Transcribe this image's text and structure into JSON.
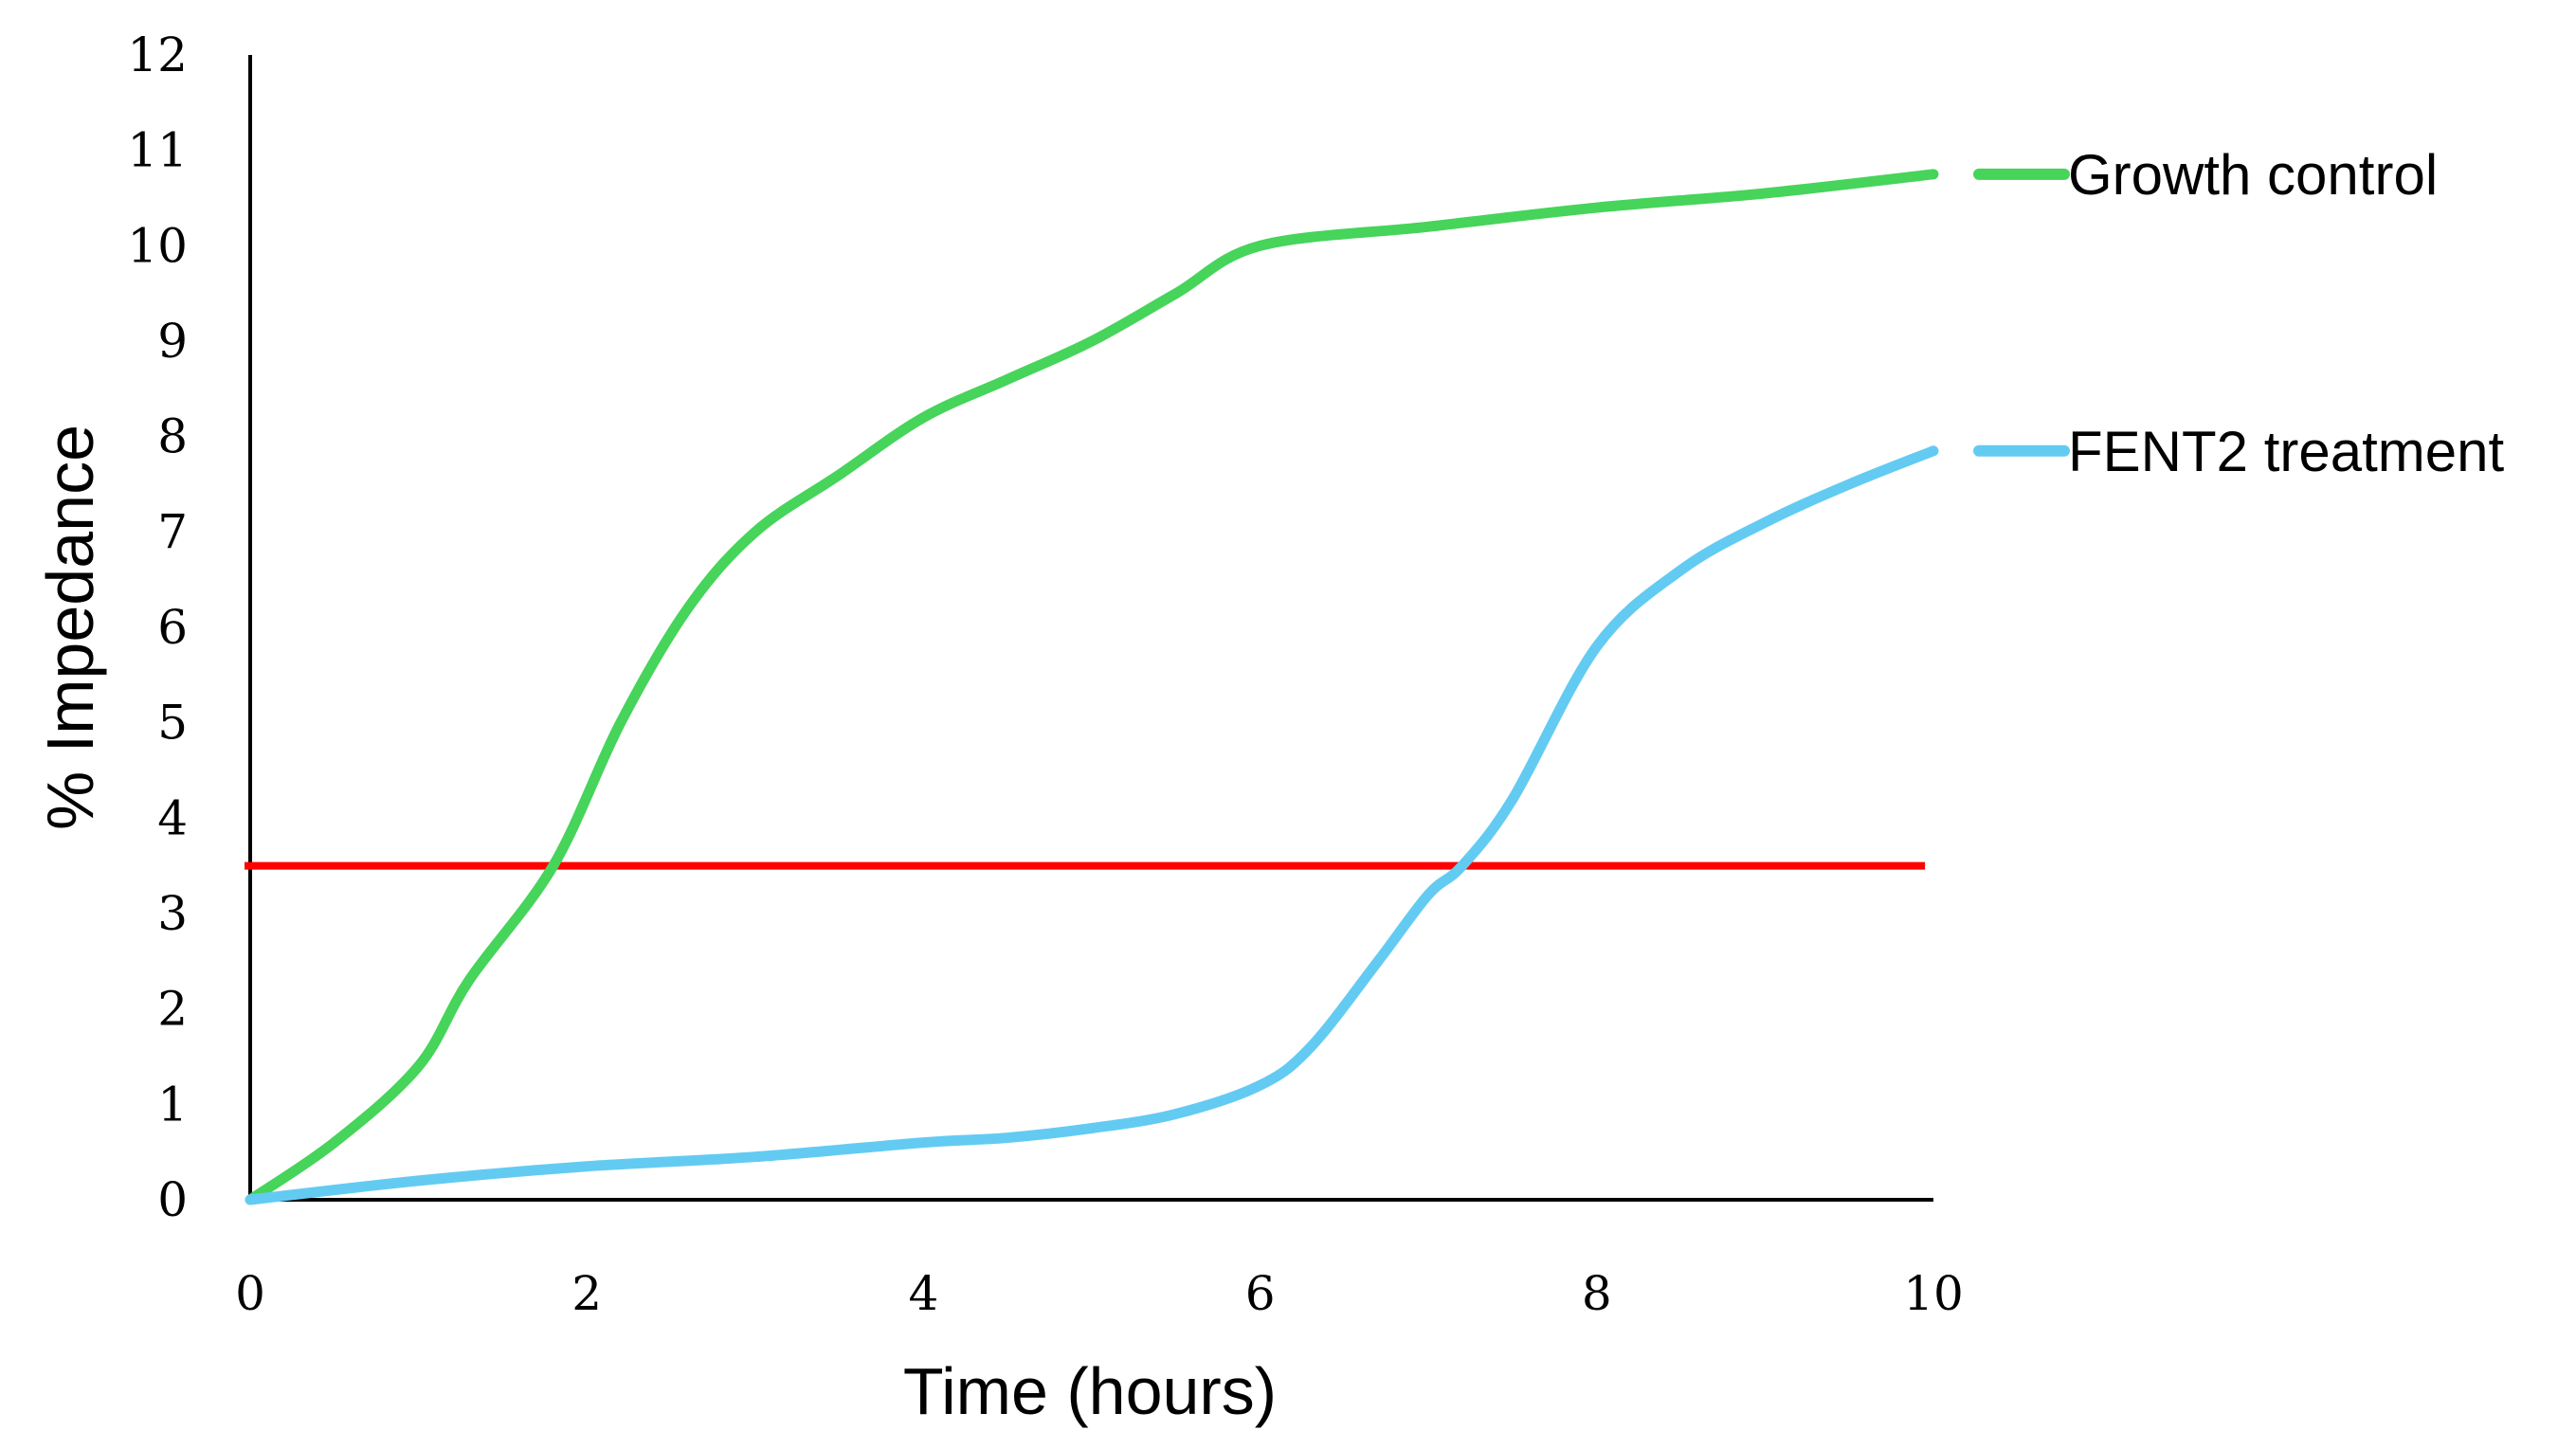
{
  "chart_data": {
    "type": "line",
    "title": "",
    "xlabel": "Time (hours)",
    "ylabel": "% Impedance",
    "xlim": [
      0,
      10
    ],
    "ylim": [
      0,
      12
    ],
    "x_ticks": [
      0,
      2,
      4,
      6,
      8,
      10
    ],
    "y_ticks": [
      0,
      1,
      2,
      3,
      4,
      5,
      6,
      7,
      8,
      9,
      10,
      11,
      12
    ],
    "grid": false,
    "legend_position": "right (inline labels at line ends)",
    "series": [
      {
        "name": "Growth control",
        "color": "#46d45a",
        "x": [
          0,
          0.5,
          1,
          1.3,
          1.8,
          2.2,
          2.6,
          3,
          3.5,
          4,
          4.5,
          5,
          5.5,
          6,
          7,
          8,
          9,
          10
        ],
        "y": [
          0,
          0.6,
          1.4,
          2.3,
          3.5,
          5.0,
          6.2,
          7.0,
          7.6,
          8.2,
          8.6,
          9.0,
          9.5,
          10.0,
          10.2,
          10.4,
          10.55,
          10.75
        ]
      },
      {
        "name": "FENT2 treatment",
        "color": "#63cbf2",
        "x": [
          0,
          1,
          2,
          3,
          4,
          4.5,
          5,
          5.5,
          6,
          6.3,
          6.7,
          7,
          7.2,
          7.5,
          8,
          8.5,
          9,
          9.5,
          10
        ],
        "y": [
          0,
          0.2,
          0.35,
          0.45,
          0.6,
          0.65,
          0.75,
          0.9,
          1.2,
          1.6,
          2.5,
          3.2,
          3.5,
          4.2,
          5.8,
          6.6,
          7.1,
          7.5,
          7.85
        ]
      }
    ],
    "annotations": [
      {
        "type": "hline",
        "name": "threshold",
        "y": 3.5,
        "x_range": [
          0,
          9.95
        ],
        "color": "#ff0000"
      }
    ]
  },
  "labels": {
    "xlabel": "Time (hours)",
    "ylabel": "% Impedance",
    "legend": [
      "Growth control",
      "FENT2 treatment"
    ]
  }
}
